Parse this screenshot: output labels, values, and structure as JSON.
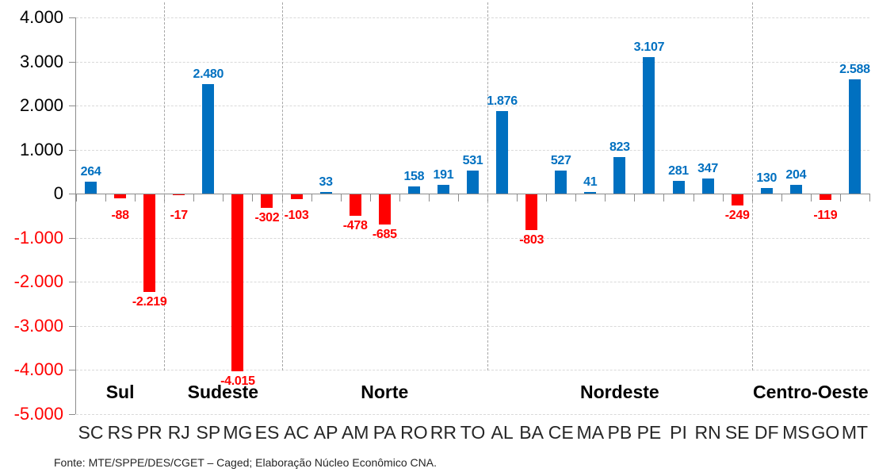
{
  "chart_data": {
    "type": "bar",
    "title": "",
    "xlabel": "",
    "ylabel": "",
    "categories": [
      "SC",
      "RS",
      "PR",
      "RJ",
      "SP",
      "MG",
      "ES",
      "AC",
      "AP",
      "AM",
      "PA",
      "RO",
      "RR",
      "TO",
      "AL",
      "BA",
      "CE",
      "MA",
      "PB",
      "PE",
      "PI",
      "RN",
      "SE",
      "DF",
      "MS",
      "GO",
      "MT"
    ],
    "values": [
      264,
      -88,
      -2219,
      -17,
      2480,
      -4015,
      -302,
      -103,
      33,
      -478,
      -685,
      158,
      191,
      531,
      1876,
      -803,
      527,
      41,
      823,
      3107,
      281,
      347,
      -249,
      130,
      204,
      -119,
      2588
    ],
    "value_labels": [
      "264",
      "-88",
      "-2.219",
      "-17",
      "2.480",
      "-4.015",
      "-302",
      "-103",
      "33",
      "-478",
      "-685",
      "158",
      "191",
      "531",
      "1.876",
      "-803",
      "527",
      "41",
      "823",
      "3.107",
      "281",
      "347",
      "-249",
      "130",
      "204",
      "-119",
      "2.588"
    ],
    "region_groups": [
      {
        "label": "Sul",
        "states": [
          "SC",
          "RS",
          "PR"
        ]
      },
      {
        "label": "Sudeste",
        "states": [
          "RJ",
          "SP",
          "MG",
          "ES"
        ]
      },
      {
        "label": "Norte",
        "states": [
          "AC",
          "AP",
          "AM",
          "PA",
          "RO",
          "RR",
          "TO"
        ]
      },
      {
        "label": "Nordeste",
        "states": [
          "AL",
          "BA",
          "CE",
          "MA",
          "PB",
          "PE",
          "PI",
          "RN",
          "SE"
        ]
      },
      {
        "label": "Centro-Oeste",
        "states": [
          "DF",
          "MS",
          "GO",
          "MT"
        ]
      }
    ],
    "y_axis": {
      "min": -5000,
      "max": 4000,
      "step": 1000,
      "tick_labels": [
        "4.000",
        "3.000",
        "2.000",
        "1.000",
        "0",
        "-1.000",
        "-2.000",
        "-3.000",
        "-4.000",
        "-5.000"
      ]
    },
    "grid": "horizontal dashed lines at every 1.000, dashed vertical separators between regions",
    "legend": "none",
    "colors": {
      "positive": "#0070c0",
      "negative": "#ff0000",
      "axis": "#8c8c8c",
      "gridline": "#d9d9d9",
      "separator": "#a6a6a6",
      "y_label_positive": "#000000",
      "y_label_negative": "#ff0000"
    }
  },
  "footer": {
    "source_text": "Fonte: MTE/SPPE/DES/CGET  – Caged; Elaboração Núcleo Econômico CNA."
  }
}
